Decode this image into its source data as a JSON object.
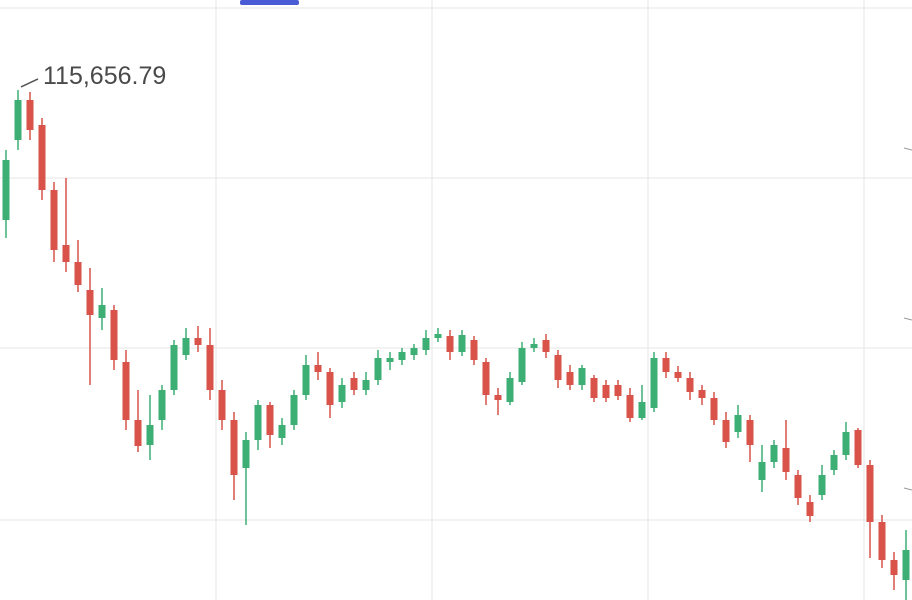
{
  "chart_data": {
    "type": "candlestick",
    "annotation": "115,656.79",
    "up_color": "#3dae74",
    "down_color": "#d9534a",
    "ylim": [
      105456,
      117456
    ],
    "open": [
      113056,
      114656,
      115456,
      114956,
      113656,
      112556,
      112216,
      111656,
      111096,
      111256,
      110216,
      109056,
      108556,
      109056,
      109656,
      110356,
      110696,
      110556,
      109656,
      109056,
      108096,
      108656,
      109356,
      108696,
      108956,
      109556,
      110156,
      110016,
      109416,
      109896,
      109656,
      109856,
      110216,
      110256,
      110356,
      110456,
      110696,
      110736,
      110416,
      110656,
      110216,
      109556,
      109416,
      109816,
      110496,
      110656,
      110356,
      110016,
      109756,
      109896,
      109756,
      109756,
      109556,
      109096,
      109296,
      110296,
      110016,
      109896,
      109656,
      109496,
      109056,
      108816,
      109056,
      107856,
      108216,
      108496,
      107956,
      107416,
      107556,
      108056,
      108356,
      108856,
      108156,
      107016,
      106256,
      105856
    ],
    "high": [
      114456,
      115656.79,
      115616,
      115096,
      113816,
      113896,
      112656,
      112096,
      111696,
      111356,
      110456,
      109656,
      109556,
      109756,
      110656,
      110896,
      110936,
      110896,
      109856,
      109216,
      108816,
      109456,
      109416,
      109096,
      109656,
      110356,
      110416,
      110096,
      109896,
      110016,
      110016,
      110456,
      110416,
      110496,
      110576,
      110856,
      110896,
      110856,
      110856,
      110736,
      110296,
      109696,
      110016,
      110616,
      110696,
      110776,
      110456,
      110156,
      110156,
      109956,
      109856,
      109856,
      109696,
      109756,
      110416,
      110416,
      110136,
      110016,
      109756,
      109616,
      109216,
      109356,
      109156,
      108556,
      108656,
      109056,
      108056,
      107556,
      108156,
      108456,
      109016,
      108896,
      108256,
      107156,
      106416,
      106856
    ],
    "low": [
      112696,
      114456,
      114656,
      113456,
      112216,
      112016,
      111616,
      109756,
      110856,
      110056,
      108856,
      108416,
      108256,
      108856,
      109556,
      110256,
      110416,
      109456,
      108856,
      107456,
      106956,
      108456,
      108496,
      108556,
      108856,
      109456,
      109856,
      109096,
      109296,
      109556,
      109556,
      109756,
      110056,
      110156,
      110256,
      110356,
      110616,
      110256,
      110336,
      110156,
      109356,
      109156,
      109356,
      109756,
      110416,
      110296,
      109696,
      109656,
      109656,
      109416,
      109416,
      109456,
      109016,
      109056,
      109216,
      109896,
      109816,
      109456,
      109356,
      108956,
      108496,
      108696,
      108216,
      107616,
      108096,
      107856,
      107356,
      107016,
      107456,
      107956,
      108256,
      108096,
      106296,
      106096,
      105656,
      105456
    ],
    "close": [
      114256,
      115456,
      114856,
      113656,
      112456,
      112216,
      111756,
      111156,
      111356,
      110256,
      109056,
      108536,
      108956,
      109656,
      110556,
      110696,
      110556,
      109656,
      109056,
      107956,
      108656,
      109356,
      108756,
      108956,
      109556,
      110156,
      110016,
      109356,
      109756,
      109656,
      109856,
      110296,
      110296,
      110416,
      110496,
      110696,
      110776,
      110416,
      110756,
      110256,
      109556,
      109456,
      109896,
      110496,
      110576,
      110416,
      109856,
      109756,
      110096,
      109496,
      109496,
      109536,
      109096,
      109416,
      110296,
      110016,
      109896,
      109616,
      109496,
      109056,
      108616,
      109156,
      108556,
      108216,
      108556,
      108016,
      107496,
      107136,
      107956,
      108356,
      108816,
      108156,
      107016,
      106256,
      105956,
      106456
    ]
  }
}
